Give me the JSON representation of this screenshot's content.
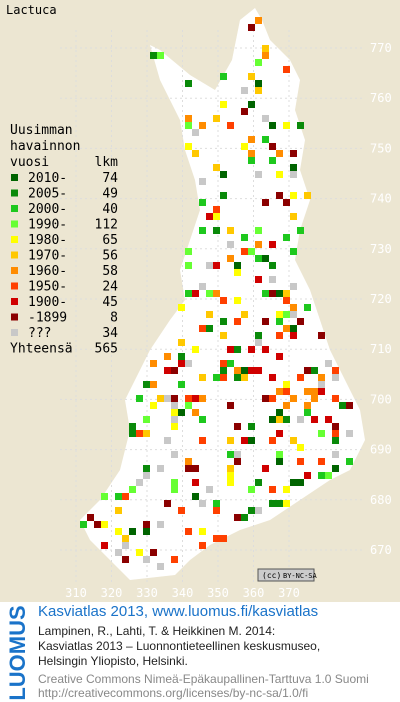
{
  "map": {
    "title": "Lactuca",
    "xticks": [
      310,
      320,
      330,
      340,
      350,
      360,
      370
    ],
    "yticks": [
      670,
      680,
      690,
      700,
      710,
      720,
      730,
      740,
      750,
      760,
      770
    ],
    "legend": {
      "heading": [
        "Uusimman",
        "havainnon",
        "vuosi"
      ],
      "count_heading": "lkm",
      "entries": [
        {
          "label": "2010-",
          "count": 74,
          "color": "#006400"
        },
        {
          "label": "2005-",
          "count": 49,
          "color": "#0a8a0a"
        },
        {
          "label": "2000-",
          "count": 40,
          "color": "#1ec81e"
        },
        {
          "label": "1990-",
          "count": 112,
          "color": "#66ff33"
        },
        {
          "label": "1980-",
          "count": 65,
          "color": "#ffff00"
        },
        {
          "label": "1970-",
          "count": 56,
          "color": "#ffc800"
        },
        {
          "label": "1960-",
          "count": 58,
          "color": "#ff8c00"
        },
        {
          "label": "1950-",
          "count": 24,
          "color": "#ff4000"
        },
        {
          "label": "1900-",
          "count": 45,
          "color": "#d00000"
        },
        {
          "label": "-1899",
          "count": 8,
          "color": "#8b0000"
        },
        {
          "label": "???",
          "count": 34,
          "color": "#c8c8c8"
        }
      ],
      "total_label": "Yhteensä",
      "total": 565
    },
    "license_badge": "BY-NC-SA"
  },
  "footer": {
    "brand": "LUOMUS",
    "headline": "Kasviatlas 2013, www.luomus.fi/kasviatlas",
    "citation": [
      "Lampinen, R., Lahti, T. & Heikkinen M. 2014:",
      "Kasviatlas 2013 – Luonnontieteellinen keskusmuseo,",
      "Helsingin Yliopisto, Helsinki."
    ],
    "license": [
      "Creative Commons Nimeä-Epäkaupallinen-Tarttuva 1.0 Suomi",
      "http://creativecommons.org/licenses/by-nc-sa/1.0/fi"
    ]
  }
}
